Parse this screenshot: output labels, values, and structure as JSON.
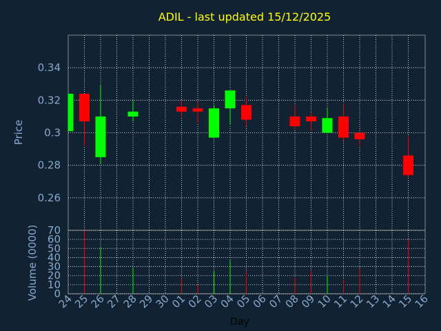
{
  "chart_data": {
    "type": "candlestick",
    "title": "ADIL - last updated 15/12/2025",
    "ylabel": "Price",
    "volume_label": "Volume (0000)",
    "xlabel": "Day",
    "ylim": [
      0.24,
      0.36
    ],
    "yticks": [
      "0.26",
      "0.28",
      "0.3",
      "0.32",
      "0.34"
    ],
    "volume_ylim": [
      0,
      70
    ],
    "volume_ticks": [
      "0",
      "10",
      "20",
      "30",
      "40",
      "50",
      "60",
      "70"
    ],
    "grid": true,
    "colors": {
      "up": "#00ff00",
      "down": "#ff0000",
      "background": "#112233",
      "grid": "#ffffff",
      "title": "#ffff00",
      "axis_text": "#88aacc"
    },
    "x_tick_labels": [
      "24",
      "25",
      "26",
      "27",
      "28",
      "29",
      "30",
      "01",
      "02",
      "03",
      "04",
      "05",
      "06",
      "07",
      "08",
      "09",
      "10",
      "11",
      "12",
      "13",
      "14",
      "15",
      "16"
    ],
    "candles": [
      {
        "day": "24",
        "open": 0.301,
        "high": 0.324,
        "low": 0.301,
        "close": 0.324,
        "volume": 0
      },
      {
        "day": "25",
        "open": 0.324,
        "high": 0.324,
        "low": 0.292,
        "close": 0.307,
        "volume": 70
      },
      {
        "day": "26",
        "open": 0.285,
        "high": 0.329,
        "low": 0.281,
        "close": 0.31,
        "volume": 52
      },
      {
        "day": "28",
        "open": 0.31,
        "high": 0.32,
        "low": 0.307,
        "close": 0.313,
        "volume": 29
      },
      {
        "day": "01",
        "open": 0.316,
        "high": 0.32,
        "low": 0.31,
        "close": 0.313,
        "volume": 17
      },
      {
        "day": "02",
        "open": 0.315,
        "high": 0.319,
        "low": 0.306,
        "close": 0.313,
        "volume": 10
      },
      {
        "day": "03",
        "open": 0.297,
        "high": 0.317,
        "low": 0.297,
        "close": 0.315,
        "volume": 25
      },
      {
        "day": "04",
        "open": 0.315,
        "high": 0.326,
        "low": 0.305,
        "close": 0.326,
        "volume": 37
      },
      {
        "day": "05",
        "open": 0.317,
        "high": 0.322,
        "low": 0.304,
        "close": 0.308,
        "volume": 25
      },
      {
        "day": "08",
        "open": 0.31,
        "high": 0.317,
        "low": 0.302,
        "close": 0.304,
        "volume": 18
      },
      {
        "day": "09",
        "open": 0.31,
        "high": 0.312,
        "low": 0.301,
        "close": 0.307,
        "volume": 25
      },
      {
        "day": "10",
        "open": 0.3,
        "high": 0.315,
        "low": 0.3,
        "close": 0.309,
        "volume": 20
      },
      {
        "day": "11",
        "open": 0.31,
        "high": 0.318,
        "low": 0.295,
        "close": 0.297,
        "volume": 16
      },
      {
        "day": "12",
        "open": 0.3,
        "high": 0.3,
        "low": 0.292,
        "close": 0.296,
        "volume": 28
      },
      {
        "day": "15",
        "open": 0.286,
        "high": 0.298,
        "low": 0.272,
        "close": 0.274,
        "volume": 60
      }
    ]
  }
}
